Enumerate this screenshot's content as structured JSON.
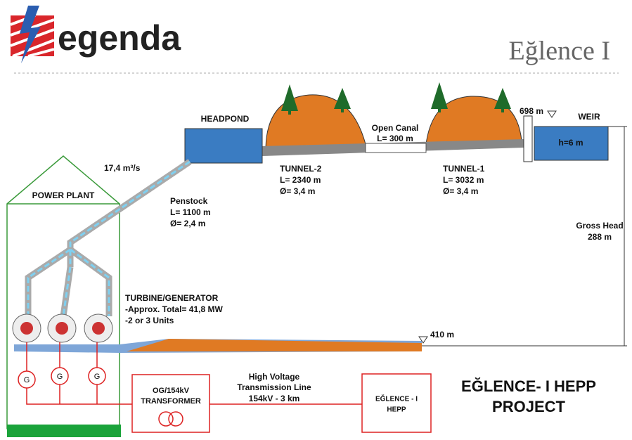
{
  "logo": "egenda",
  "title": "Eğlence I",
  "headpond": "HEADPOND",
  "weir": {
    "label": "WEIR",
    "height": "h=6 m",
    "elevation": "698 m"
  },
  "open_canal": [
    "Open Canal",
    "L= 300 m"
  ],
  "tunnel_2": [
    "TUNNEL-2",
    "L= 2340 m",
    "Ø= 3,4 m"
  ],
  "tunnel_1": [
    "TUNNEL-1",
    "L= 3032 m",
    "Ø= 3,4 m"
  ],
  "flow": "17,4 m³/s",
  "power_plant": "POWER PLANT",
  "penstock": [
    "Penstock",
    "L= 1100 m",
    "Ø= 2,4 m"
  ],
  "gross_head": [
    "Gross Head",
    "288 m"
  ],
  "turbine": [
    "TURBINE/GENERATOR",
    "-Approx. Total= 41,8 MW",
    "-2 or 3 Units"
  ],
  "tailwater": "410 m",
  "generators": [
    "G",
    "G",
    "G"
  ],
  "transformer": [
    "OG/154kV",
    "TRANSFORMER"
  ],
  "line": [
    "High Voltage",
    "Transmission Line",
    "154kV - 3 km"
  ],
  "hepp_box": [
    "EĞLENCE - I",
    "HEPP"
  ],
  "project": [
    "EĞLENCE- I HEPP",
    "PROJECT"
  ]
}
